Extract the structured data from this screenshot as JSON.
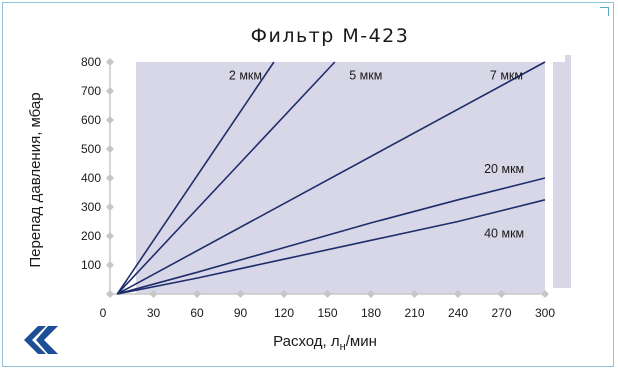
{
  "chart_data": {
    "type": "line",
    "title": "Фильтр М-423",
    "xlabel_main": "Расход, л",
    "xlabel_sub": "н",
    "xlabel_tail": "/мин",
    "ylabel": "Перепад давления, мбар",
    "xlim": [
      0,
      300
    ],
    "ylim": [
      0,
      800
    ],
    "x_ticks": [
      0,
      30,
      60,
      90,
      120,
      150,
      180,
      210,
      240,
      270,
      300
    ],
    "y_ticks": [
      100,
      200,
      300,
      400,
      500,
      600,
      700,
      800
    ],
    "grid": false,
    "series": [
      {
        "name": "2 мкм",
        "label_at": [
          82,
          740
        ],
        "points": [
          [
            5,
            0
          ],
          [
            113,
            800
          ]
        ],
        "color": "#1f2d6b"
      },
      {
        "name": "5 мкм",
        "label_at": [
          165,
          740
        ],
        "points": [
          [
            5,
            0
          ],
          [
            155,
            800
          ]
        ],
        "color": "#1f2d6b"
      },
      {
        "name": "7 мкм",
        "label_at": [
          262,
          740
        ],
        "points": [
          [
            5,
            0
          ],
          [
            300,
            800
          ]
        ],
        "color": "#1f2d6b"
      },
      {
        "name": "20 мкм",
        "label_at": [
          258,
          418
        ],
        "points": [
          [
            5,
            0
          ],
          [
            60,
            75
          ],
          [
            120,
            160
          ],
          [
            180,
            245
          ],
          [
            240,
            325
          ],
          [
            300,
            400
          ]
        ],
        "color": "#1f2d6b"
      },
      {
        "name": "40 мкм",
        "label_at": [
          258,
          195
        ],
        "points": [
          [
            5,
            0
          ],
          [
            60,
            55
          ],
          [
            120,
            120
          ],
          [
            180,
            185
          ],
          [
            240,
            250
          ],
          [
            300,
            325
          ]
        ],
        "color": "#1f2d6b"
      }
    ]
  },
  "colors": {
    "plot_background": "#d8d7e8",
    "line": "#1f2d6b",
    "axis": "#c9c9c9",
    "tick_marker": "#c6c6c6",
    "logo": "#1d4e96"
  },
  "logo": {
    "icon": "double-chevron-logo-icon"
  }
}
